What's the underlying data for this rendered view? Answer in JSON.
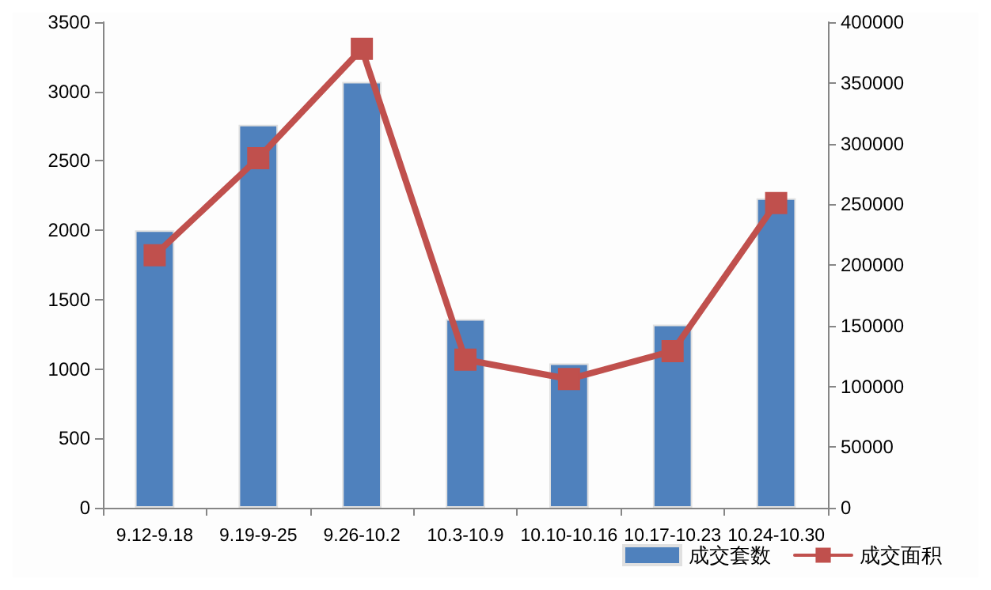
{
  "chart_data": {
    "type": "bar",
    "categories": [
      "9.12-9.18",
      "9.19-9-25",
      "9.26-10.2",
      "10.3-10.9",
      "10.10-10.16",
      "10.17-10.23",
      "10.24-10.30"
    ],
    "series": [
      {
        "name": "成交套数",
        "color": "#4f81bd",
        "values": [
          2000,
          2760,
          3070,
          1360,
          1040,
          1320,
          2230
        ]
      },
      {
        "name": "成交面积",
        "type": "line",
        "axis": "y2",
        "color": "#c0504d",
        "marker": "square",
        "values": [
          208000,
          288000,
          378000,
          122000,
          106000,
          129000,
          251000
        ]
      }
    ],
    "ylim": [
      0,
      3500
    ],
    "yticks": [
      0,
      500,
      1000,
      1500,
      2000,
      2500,
      3000,
      3500
    ],
    "y2lim": [
      0,
      400000
    ],
    "y2ticks": [
      0,
      50000,
      100000,
      150000,
      200000,
      250000,
      300000,
      350000,
      400000
    ],
    "grid": false,
    "legend": "bottom right"
  }
}
